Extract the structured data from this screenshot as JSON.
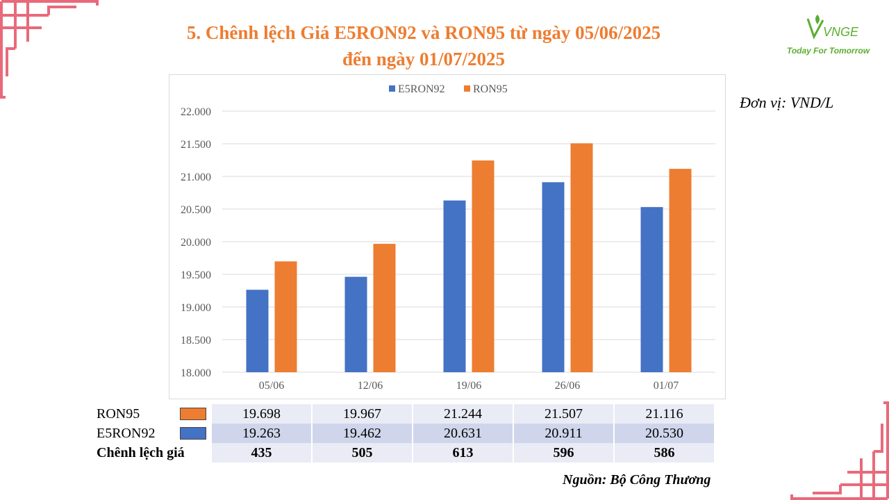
{
  "title_line1": "5. Chênh lệch Giá E5RON92 và RON95 từ ngày 05/06/2025",
  "title_line2": "đến ngày 01/07/2025",
  "logo": {
    "brand": "VNGE",
    "tagline": "Today For Tomorrow"
  },
  "unit": "Đơn vị: VND/L",
  "source": "Nguồn: Bộ Công Thương",
  "colors": {
    "e5ron92": "#4472C4",
    "ron95": "#ED7D31",
    "title": "#ED7D31",
    "decor": "#E86A7A"
  },
  "chart_data": {
    "type": "bar",
    "categories": [
      "05/06",
      "12/06",
      "19/06",
      "26/06",
      "01/07"
    ],
    "series": [
      {
        "name": "E5RON92",
        "color": "#4472C4",
        "values": [
          19263,
          19462,
          20631,
          20911,
          20530
        ]
      },
      {
        "name": "RON95",
        "color": "#ED7D31",
        "values": [
          19698,
          19967,
          21244,
          21507,
          21116
        ]
      }
    ],
    "ylim": [
      18000,
      22000
    ],
    "yticks": [
      "18.000",
      "18.500",
      "19.000",
      "19.500",
      "20.000",
      "20.500",
      "21.000",
      "21.500",
      "22.000"
    ],
    "grid": true,
    "legend": "top"
  },
  "table": {
    "rows": [
      {
        "label": "RON95",
        "values": [
          "19.698",
          "19.967",
          "21.244",
          "21.507",
          "21.116"
        ]
      },
      {
        "label": "E5RON92",
        "values": [
          "19.263",
          "19.462",
          "20.631",
          "20.911",
          "20.530"
        ]
      },
      {
        "label": "Chênh lệch giá",
        "values": [
          "435",
          "505",
          "613",
          "596",
          "586"
        ]
      }
    ]
  }
}
